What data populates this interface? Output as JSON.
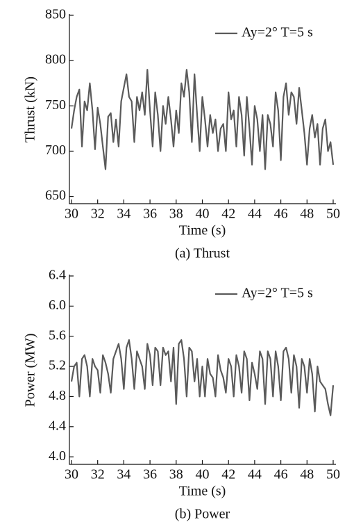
{
  "chart_data": [
    {
      "type": "line",
      "title": "(a) Thrust",
      "xlabel": "Time (s)",
      "ylabel": "Thrust (kN)",
      "xlim": [
        30,
        50
      ],
      "xticks": [
        30,
        32,
        34,
        36,
        38,
        40,
        42,
        44,
        46,
        48,
        50
      ],
      "ylim": [
        642,
        850
      ],
      "yticks": [
        650,
        700,
        750,
        800,
        850
      ],
      "legend": "upper right",
      "x": [
        30,
        30.2,
        30.4,
        30.6,
        30.8,
        31,
        31.2,
        31.4,
        31.6,
        31.8,
        32,
        32.2,
        32.4,
        32.6,
        32.8,
        33,
        33.2,
        33.4,
        33.6,
        33.8,
        34,
        34.2,
        34.4,
        34.6,
        34.8,
        35,
        35.2,
        35.4,
        35.6,
        35.8,
        36,
        36.2,
        36.4,
        36.6,
        36.8,
        37,
        37.2,
        37.4,
        37.6,
        37.8,
        38,
        38.2,
        38.4,
        38.6,
        38.8,
        39,
        39.2,
        39.4,
        39.6,
        39.8,
        40,
        40.2,
        40.4,
        40.6,
        40.8,
        41,
        41.2,
        41.4,
        41.6,
        41.8,
        42,
        42.2,
        42.4,
        42.6,
        42.8,
        43,
        43.2,
        43.4,
        43.6,
        43.8,
        44,
        44.2,
        44.4,
        44.6,
        44.8,
        45,
        45.2,
        45.4,
        45.6,
        45.8,
        46,
        46.2,
        46.4,
        46.6,
        46.8,
        47,
        47.2,
        47.4,
        47.6,
        47.8,
        48,
        48.2,
        48.4,
        48.6,
        48.8,
        49,
        49.2,
        49.4,
        49.6,
        49.8,
        50
      ],
      "series": [
        {
          "name": "Ay=2°  T=5 s",
          "color": "#5a5a5a",
          "values": [
            725,
            745,
            760,
            768,
            705,
            755,
            745,
            775,
            745,
            702,
            748,
            730,
            705,
            680,
            738,
            742,
            710,
            735,
            705,
            755,
            770,
            785,
            760,
            755,
            710,
            760,
            745,
            765,
            740,
            790,
            745,
            705,
            765,
            740,
            700,
            750,
            730,
            760,
            735,
            705,
            745,
            720,
            775,
            760,
            790,
            765,
            710,
            785,
            740,
            700,
            760,
            735,
            705,
            740,
            720,
            735,
            700,
            725,
            730,
            700,
            765,
            735,
            745,
            705,
            760,
            740,
            695,
            760,
            725,
            685,
            750,
            735,
            700,
            740,
            680,
            740,
            730,
            705,
            765,
            745,
            690,
            760,
            775,
            740,
            765,
            760,
            730,
            770,
            745,
            720,
            685,
            725,
            740,
            715,
            730,
            685,
            725,
            735,
            700,
            710,
            685
          ]
        }
      ]
    },
    {
      "type": "line",
      "title": "(b) Power",
      "xlabel": "Time (s)",
      "ylabel": "Power (MW)",
      "xlim": [
        30,
        50
      ],
      "xticks": [
        30,
        32,
        34,
        36,
        38,
        40,
        42,
        44,
        46,
        48,
        50
      ],
      "ylim": [
        3.9,
        6.4
      ],
      "yticks": [
        {
          "value": 4.0,
          "label": "4.0"
        },
        4.4,
        4.8,
        5.2,
        5.6,
        {
          "value": 6.0,
          "label": "6.0"
        },
        6.4
      ],
      "legend": "upper right",
      "x": [
        30,
        30.2,
        30.4,
        30.6,
        30.8,
        31,
        31.2,
        31.4,
        31.6,
        31.8,
        32,
        32.2,
        32.4,
        32.6,
        32.8,
        33,
        33.2,
        33.4,
        33.6,
        33.8,
        34,
        34.2,
        34.4,
        34.6,
        34.8,
        35,
        35.2,
        35.4,
        35.6,
        35.8,
        36,
        36.2,
        36.4,
        36.6,
        36.8,
        37,
        37.2,
        37.4,
        37.6,
        37.8,
        38,
        38.2,
        38.4,
        38.6,
        38.8,
        39,
        39.2,
        39.4,
        39.6,
        39.8,
        40,
        40.2,
        40.4,
        40.6,
        40.8,
        41,
        41.2,
        41.4,
        41.6,
        41.8,
        42,
        42.2,
        42.4,
        42.6,
        42.8,
        43,
        43.2,
        43.4,
        43.6,
        43.8,
        44,
        44.2,
        44.4,
        44.6,
        44.8,
        45,
        45.2,
        45.4,
        45.6,
        45.8,
        46,
        46.2,
        46.4,
        46.6,
        46.8,
        47,
        47.2,
        47.4,
        47.6,
        47.8,
        48,
        48.2,
        48.4,
        48.6,
        48.8,
        49,
        49.2,
        49.4,
        49.6,
        49.8,
        50
      ],
      "series": [
        {
          "name": "Ay=2°  T=5 s",
          "color": "#5a5a5a",
          "values": [
            5.0,
            5.2,
            5.25,
            4.8,
            5.3,
            5.35,
            5.2,
            4.8,
            5.3,
            5.2,
            5.15,
            4.85,
            5.35,
            5.25,
            5.1,
            4.85,
            5.3,
            5.4,
            5.5,
            5.3,
            4.9,
            5.45,
            5.55,
            5.3,
            4.9,
            5.4,
            5.3,
            5.2,
            4.9,
            5.5,
            5.35,
            4.95,
            5.45,
            5.4,
            4.95,
            5.45,
            5.35,
            5.4,
            5.0,
            5.45,
            4.7,
            5.5,
            5.55,
            5.3,
            4.8,
            5.45,
            5.4,
            5.0,
            5.3,
            4.8,
            5.2,
            4.8,
            5.3,
            5.1,
            5.05,
            4.8,
            5.35,
            5.15,
            5.05,
            4.85,
            5.3,
            5.2,
            4.8,
            5.35,
            5.2,
            4.85,
            5.4,
            5.3,
            4.75,
            5.25,
            5.1,
            4.9,
            5.4,
            5.3,
            4.7,
            5.4,
            5.3,
            4.8,
            5.4,
            5.2,
            4.75,
            5.4,
            5.45,
            5.3,
            4.85,
            5.35,
            5.2,
            4.65,
            5.3,
            5.2,
            4.85,
            5.3,
            5.1,
            4.6,
            5.2,
            5.0,
            4.95,
            4.9,
            4.7,
            4.55,
            4.95
          ]
        }
      ]
    }
  ]
}
